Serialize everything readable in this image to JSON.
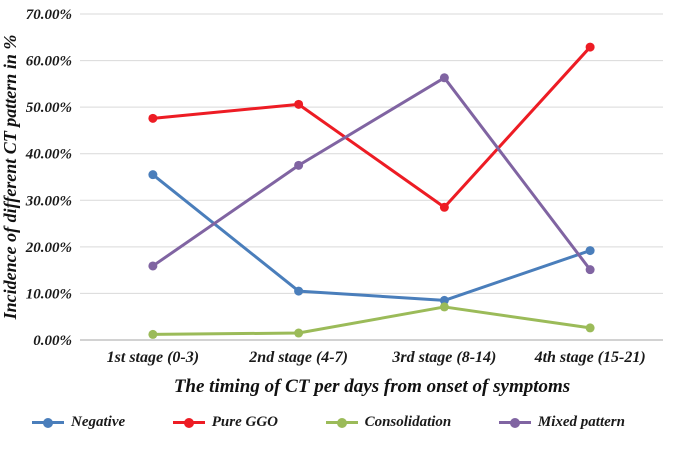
{
  "chart_data": {
    "type": "line",
    "title": "",
    "categories": [
      "1st stage (0-3)",
      "2nd stage (4-7)",
      "3rd stage (8-14)",
      "4th stage (15-21)"
    ],
    "series": [
      {
        "name": "Negative",
        "color": "#4a7ebb",
        "values": [
          35.5,
          10.5,
          8.5,
          19.2
        ]
      },
      {
        "name": "Pure GGO",
        "color": "#ed1c24",
        "values": [
          47.6,
          50.6,
          28.5,
          62.9
        ]
      },
      {
        "name": "Consolidation",
        "color": "#9bbb59",
        "values": [
          1.2,
          1.5,
          7.1,
          2.6
        ]
      },
      {
        "name": "Mixed pattern",
        "color": "#8064a2",
        "values": [
          15.9,
          37.5,
          56.3,
          15.1
        ]
      }
    ],
    "xlabel": "The timing of CT per days from onset of symptoms",
    "ylabel": "Incidence of different CT pattern in %",
    "ylim": [
      0,
      70
    ],
    "ytick_step": 10,
    "ytick_format": "0.00%",
    "grid": true,
    "legend_position": "bottom",
    "colors": {
      "gridline": "#d9d9d9",
      "axis_line": "#a6a6a6",
      "text": "#1a1a1a"
    }
  }
}
